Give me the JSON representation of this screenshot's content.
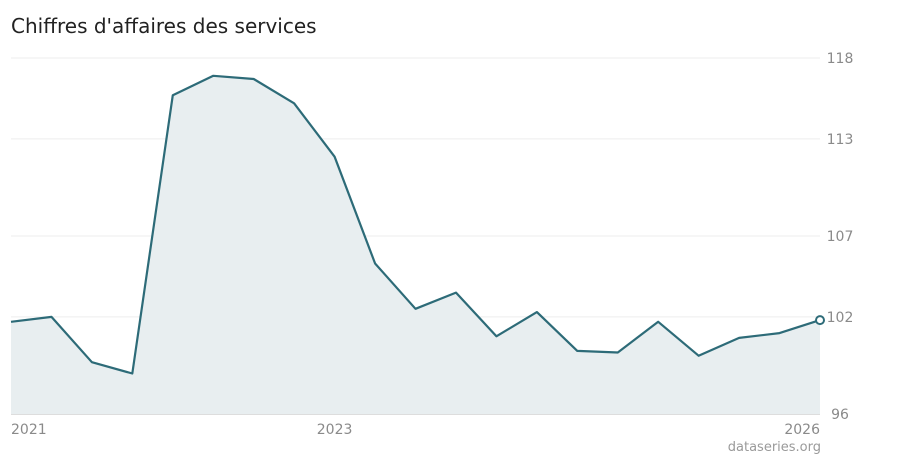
{
  "title": "Chiffres d'affaires des services",
  "credit": "dataseries.org",
  "colors": {
    "line": "#2d6b78",
    "area": "#e8eef0",
    "grid": "#eeeeee",
    "axis": "#dddddd"
  },
  "chart_data": {
    "type": "area",
    "title": "Chiffres d'affaires des services",
    "xlabel": "",
    "ylabel": "",
    "x_ticks": [
      {
        "label": "2021",
        "x": 2021.0
      },
      {
        "label": "2023",
        "x": 2023.0
      },
      {
        "label": "2026",
        "x": 2026.0
      }
    ],
    "y_ticks": [
      {
        "label": "118",
        "value": 118
      },
      {
        "label": "113",
        "value": 113
      },
      {
        "label": "107",
        "value": 107
      },
      {
        "label": "102",
        "value": 102
      },
      {
        "label": "96",
        "value": 96
      }
    ],
    "ylim": [
      96,
      118
    ],
    "xlim": [
      2021.0,
      2026.0
    ],
    "grid": true,
    "legend": "none",
    "series": [
      {
        "x": [
          2021.0,
          2021.25,
          2021.5,
          2021.75,
          2022.0,
          2022.25,
          2022.5,
          2022.75,
          2023.0,
          2023.25,
          2023.5,
          2023.75,
          2024.0,
          2024.25,
          2024.5,
          2024.75,
          2025.0,
          2025.25,
          2025.5,
          2025.75,
          2026.0
        ],
        "values": [
          101.7,
          102.0,
          99.2,
          98.5,
          115.7,
          116.9,
          116.7,
          115.2,
          111.9,
          105.3,
          102.5,
          103.5,
          100.8,
          102.3,
          99.9,
          99.8,
          101.7,
          99.6,
          100.7,
          101.0,
          101.8
        ]
      }
    ]
  }
}
